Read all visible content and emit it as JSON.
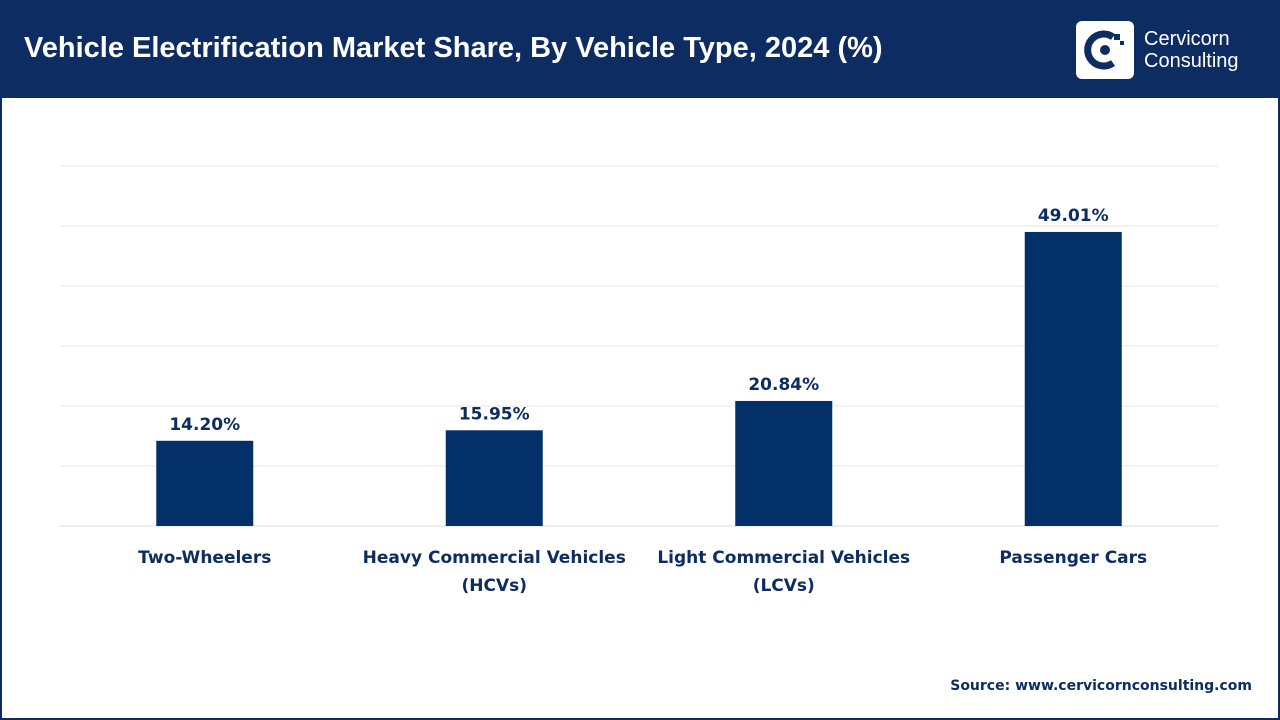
{
  "header": {
    "title": "Vehicle Electrification Market Share, By Vehicle Type, 2024 (%)",
    "logo": {
      "line1": "Cervicorn",
      "line2": "Consulting",
      "icon": "cervicorn-logo-icon"
    }
  },
  "colors": {
    "brand": "#0d2d62",
    "bar": "#033069",
    "grid": "#e6e6e6",
    "text": "#0d2d62"
  },
  "chart_data": {
    "type": "bar",
    "title": "Vehicle Electrification Market Share, By Vehicle Type, 2024 (%)",
    "categories": [
      [
        "Two-Wheelers"
      ],
      [
        "Heavy Commercial Vehicles",
        "(HCVs)"
      ],
      [
        "Light Commercial Vehicles",
        "(LCVs)"
      ],
      [
        "Passenger Cars"
      ]
    ],
    "values": [
      14.2,
      15.95,
      20.84,
      49.01
    ],
    "value_labels": [
      "14.20%",
      "15.95%",
      "20.84%",
      "49.01%"
    ],
    "xlabel": "",
    "ylabel": "",
    "ylim": [
      0,
      60
    ],
    "grid_step": 10,
    "grid": true,
    "legend": "none"
  },
  "footer": {
    "source": "Source: www.cervicornconsulting.com"
  }
}
